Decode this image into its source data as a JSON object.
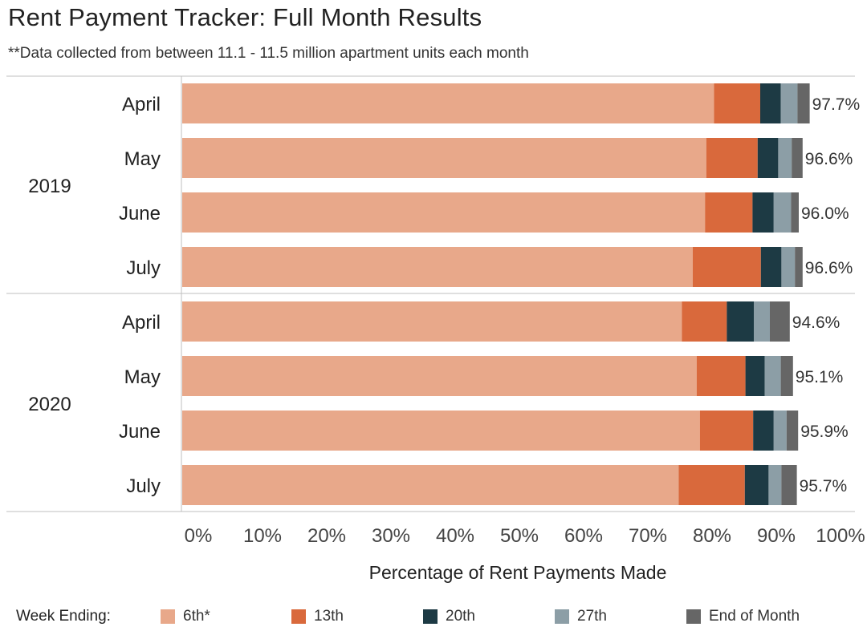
{
  "title": "Rent Payment Tracker: Full Month Results",
  "subtitle": "**Data collected from between 11.1 - 11.5 million apartment units each month",
  "legend": {
    "title": "Week Ending:",
    "items": [
      {
        "label": "6th*",
        "color": "#E8A88A"
      },
      {
        "label": "13th",
        "color": "#D9693C"
      },
      {
        "label": "20th",
        "color": "#1D3A44"
      },
      {
        "label": "27th",
        "color": "#8C9EA6"
      },
      {
        "label": "End of Month",
        "color": "#666666"
      }
    ]
  },
  "chart_data": {
    "type": "bar",
    "orientation": "horizontal",
    "stacked": true,
    "xlabel": "Percentage of Rent Payments Made",
    "xlim": [
      0,
      100
    ],
    "xticks": [
      "0%",
      "10%",
      "20%",
      "30%",
      "40%",
      "50%",
      "60%",
      "70%",
      "80%",
      "90%",
      "100%"
    ],
    "groups": [
      {
        "name": "2019",
        "rows": [
          {
            "month": "April",
            "total_label": "97.7%",
            "segments": [
              82.8,
              7.2,
              3.2,
              2.6,
              1.9
            ]
          },
          {
            "month": "May",
            "total_label": "96.6%",
            "segments": [
              81.6,
              8.0,
              3.2,
              2.1,
              1.7
            ]
          },
          {
            "month": "June",
            "total_label": "96.0%",
            "segments": [
              81.4,
              7.4,
              3.3,
              2.7,
              1.2
            ]
          },
          {
            "month": "July",
            "total_label": "96.6%",
            "segments": [
              79.5,
              10.6,
              3.2,
              2.1,
              1.2
            ]
          }
        ]
      },
      {
        "name": "2020",
        "rows": [
          {
            "month": "April",
            "total_label": "94.6%",
            "segments": [
              77.8,
              7.0,
              4.2,
              2.5,
              3.1
            ]
          },
          {
            "month": "May",
            "total_label": "95.1%",
            "segments": [
              80.1,
              7.6,
              3.0,
              2.5,
              1.9
            ]
          },
          {
            "month": "June",
            "total_label": "95.9%",
            "segments": [
              80.6,
              8.3,
              3.2,
              2.0,
              1.8
            ]
          },
          {
            "month": "July",
            "total_label": "95.7%",
            "segments": [
              77.3,
              10.3,
              3.7,
              2.0,
              2.4
            ]
          }
        ]
      }
    ],
    "series": [
      "6th*",
      "13th",
      "20th",
      "27th",
      "End of Month"
    ],
    "grid": false,
    "legend_position": "bottom"
  }
}
